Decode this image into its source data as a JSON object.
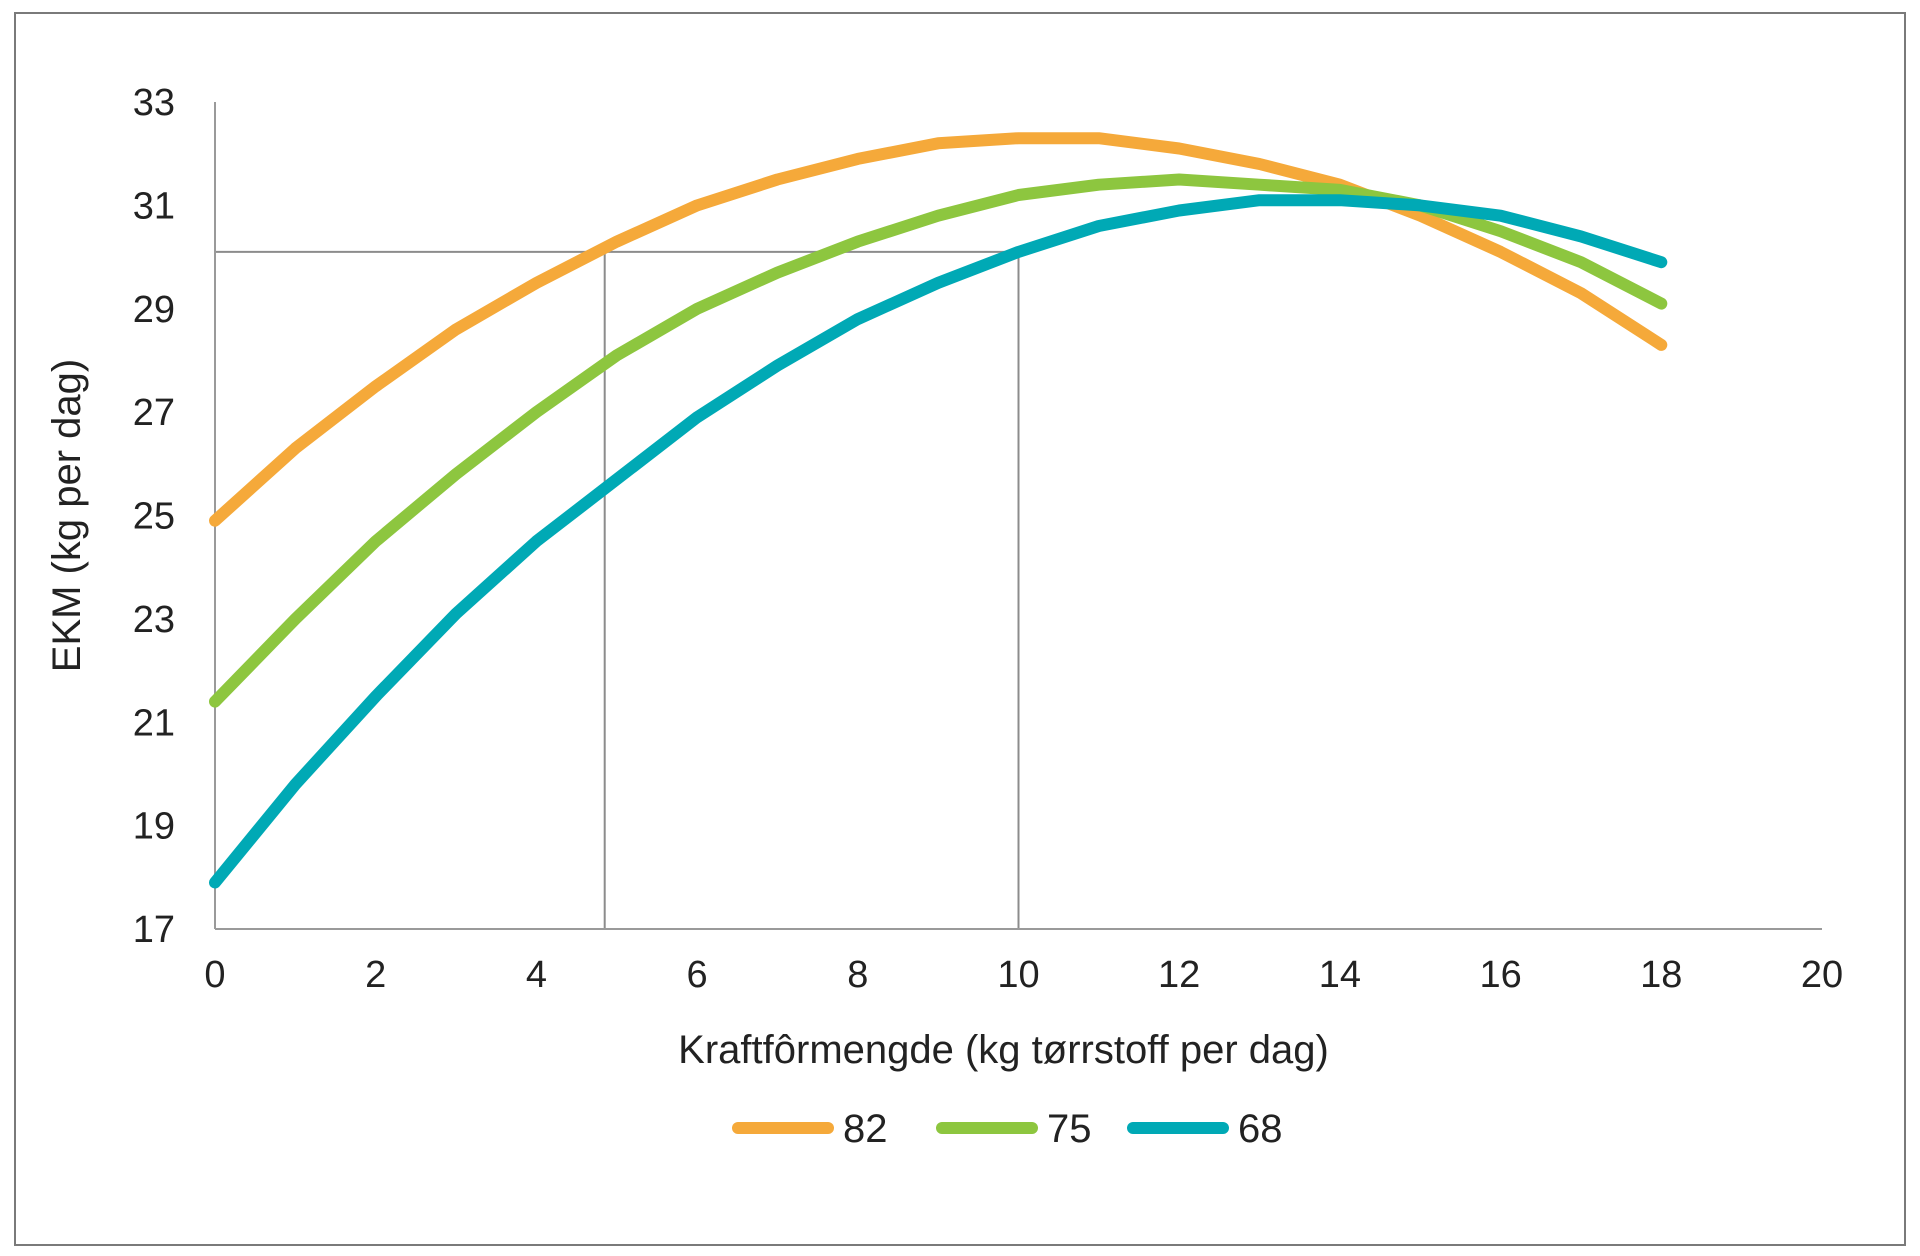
{
  "chart_data": {
    "type": "line",
    "title": "",
    "xlabel": "Kraftfôrmengde (kg tørrstoff per dag)",
    "ylabel": "EKM (kg per dag)",
    "xlim": [
      0,
      20
    ],
    "ylim": [
      17,
      33
    ],
    "xticks": [
      "0",
      "2",
      "4",
      "6",
      "8",
      "10",
      "12",
      "14",
      "16",
      "18",
      "20"
    ],
    "yticks": [
      "17",
      "19",
      "21",
      "23",
      "25",
      "27",
      "29",
      "31",
      "33"
    ],
    "grid": false,
    "legend_position": "bottom",
    "x": [
      0,
      1,
      2,
      3,
      4,
      5,
      6,
      7,
      8,
      9,
      10,
      11,
      12,
      13,
      14,
      15,
      16,
      17,
      18
    ],
    "series": [
      {
        "name": "82",
        "color": "#f5a93a",
        "values": [
          24.9,
          26.3,
          27.5,
          28.6,
          29.5,
          30.3,
          31.0,
          31.5,
          31.9,
          32.2,
          32.3,
          32.3,
          32.1,
          31.8,
          31.4,
          30.8,
          30.1,
          29.3,
          28.3
        ]
      },
      {
        "name": "75",
        "color": "#8dc63f",
        "values": [
          21.4,
          23.0,
          24.5,
          25.8,
          27.0,
          28.1,
          29.0,
          29.7,
          30.3,
          30.8,
          31.2,
          31.4,
          31.5,
          31.4,
          31.3,
          31.0,
          30.5,
          29.9,
          29.1
        ]
      },
      {
        "name": "68",
        "color": "#00a9b5",
        "values": [
          17.9,
          19.8,
          21.5,
          23.1,
          24.5,
          25.7,
          26.9,
          27.9,
          28.8,
          29.5,
          30.1,
          30.6,
          30.9,
          31.1,
          31.1,
          31.0,
          30.8,
          30.4,
          29.9
        ]
      }
    ],
    "reference_lines": {
      "horizontal_y": 30.1,
      "vertical_x": [
        4.85,
        10
      ]
    }
  }
}
